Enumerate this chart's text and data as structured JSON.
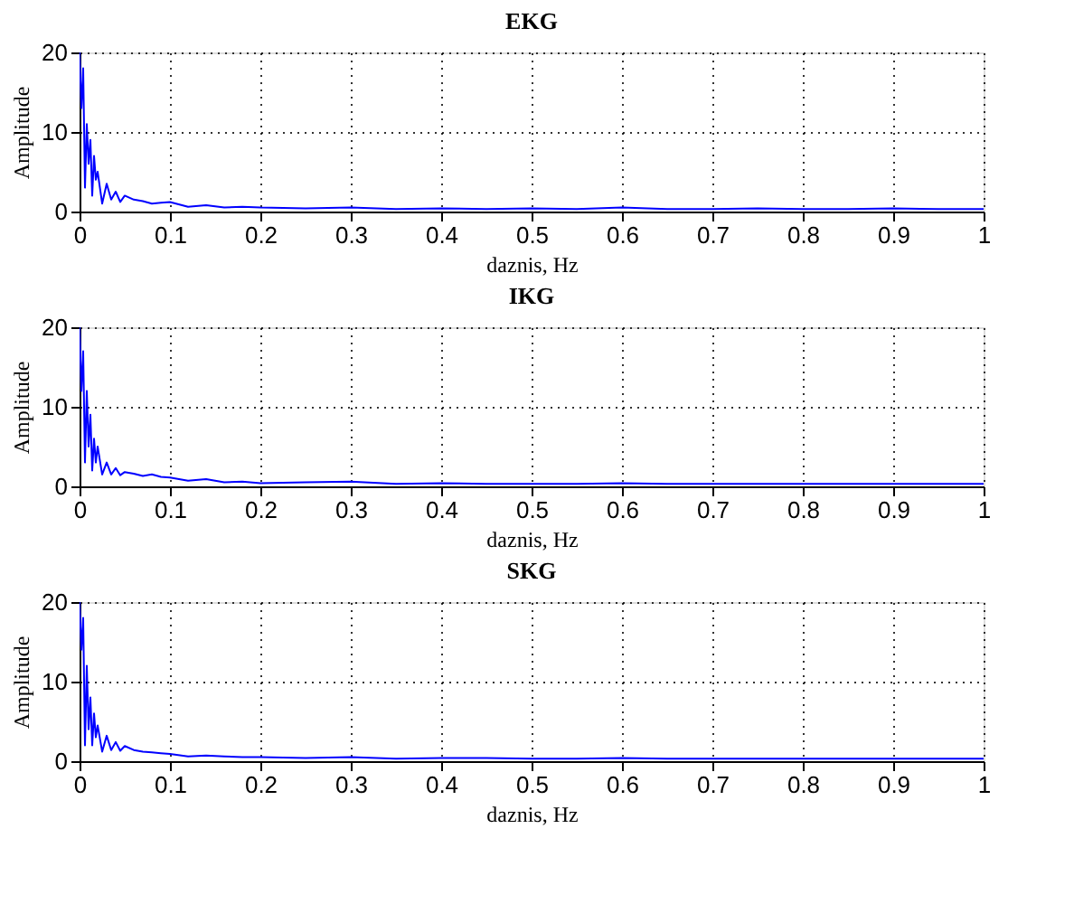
{
  "chart_data": [
    {
      "type": "line",
      "title": "EKG",
      "xlabel": "daznis, Hz",
      "ylabel": "Amplitude",
      "grid": true,
      "x": [
        0,
        0.002,
        0.004,
        0.006,
        0.008,
        0.01,
        0.012,
        0.014,
        0.016,
        0.018,
        0.02,
        0.025,
        0.03,
        0.035,
        0.04,
        0.045,
        0.05,
        0.06,
        0.07,
        0.08,
        0.09,
        0.1,
        0.12,
        0.14,
        0.16,
        0.18,
        0.2,
        0.25,
        0.3,
        0.35,
        0.4,
        0.45,
        0.5,
        0.55,
        0.6,
        0.65,
        0.7,
        0.75,
        0.8,
        0.85,
        0.9,
        0.95,
        1.0
      ],
      "series": [
        {
          "color": "#0000ff",
          "values": [
            20,
            13,
            18,
            3,
            11,
            6,
            9,
            2,
            7,
            4,
            5,
            1,
            3.5,
            1.5,
            2.5,
            1.2,
            2,
            1.5,
            1.3,
            1,
            1.1,
            1.2,
            0.6,
            0.8,
            0.5,
            0.6,
            0.5,
            0.4,
            0.5,
            0.3,
            0.4,
            0.3,
            0.4,
            0.3,
            0.5,
            0.3,
            0.3,
            0.4,
            0.3,
            0.3,
            0.4,
            0.3,
            0.3
          ]
        }
      ],
      "xlim": [
        0,
        1
      ],
      "ylim": [
        0,
        20
      ],
      "xticks": [
        0,
        0.1,
        0.2,
        0.3,
        0.4,
        0.5,
        0.6,
        0.7,
        0.8,
        0.9,
        1
      ],
      "yticks": [
        0,
        10,
        20
      ]
    },
    {
      "type": "line",
      "title": "IKG",
      "xlabel": "daznis, Hz",
      "ylabel": "Amplitude",
      "grid": true,
      "x": [
        0,
        0.002,
        0.004,
        0.006,
        0.008,
        0.01,
        0.012,
        0.014,
        0.016,
        0.018,
        0.02,
        0.025,
        0.03,
        0.035,
        0.04,
        0.045,
        0.05,
        0.06,
        0.07,
        0.08,
        0.09,
        0.1,
        0.12,
        0.14,
        0.16,
        0.18,
        0.2,
        0.25,
        0.3,
        0.35,
        0.4,
        0.45,
        0.5,
        0.55,
        0.6,
        0.65,
        0.7,
        0.75,
        0.8,
        0.85,
        0.9,
        0.95,
        1.0
      ],
      "series": [
        {
          "color": "#0000ff",
          "values": [
            20,
            12,
            17,
            3,
            12,
            5,
            9,
            2,
            6,
            3,
            5,
            1.5,
            3,
            1.5,
            2.3,
            1.4,
            1.8,
            1.6,
            1.3,
            1.5,
            1.2,
            1.1,
            0.7,
            0.9,
            0.5,
            0.6,
            0.4,
            0.5,
            0.6,
            0.3,
            0.4,
            0.3,
            0.3,
            0.3,
            0.4,
            0.3,
            0.3,
            0.3,
            0.3,
            0.3,
            0.3,
            0.3,
            0.3
          ]
        }
      ],
      "xlim": [
        0,
        1
      ],
      "ylim": [
        0,
        20
      ],
      "xticks": [
        0,
        0.1,
        0.2,
        0.3,
        0.4,
        0.5,
        0.6,
        0.7,
        0.8,
        0.9,
        1
      ],
      "yticks": [
        0,
        10,
        20
      ]
    },
    {
      "type": "line",
      "title": "SKG",
      "xlabel": "daznis, Hz",
      "ylabel": "Amplitude",
      "grid": true,
      "x": [
        0,
        0.002,
        0.004,
        0.006,
        0.008,
        0.01,
        0.012,
        0.014,
        0.016,
        0.018,
        0.02,
        0.025,
        0.03,
        0.035,
        0.04,
        0.045,
        0.05,
        0.06,
        0.07,
        0.08,
        0.09,
        0.1,
        0.12,
        0.14,
        0.16,
        0.18,
        0.2,
        0.25,
        0.3,
        0.35,
        0.4,
        0.45,
        0.5,
        0.55,
        0.6,
        0.65,
        0.7,
        0.75,
        0.8,
        0.85,
        0.9,
        0.95,
        1.0
      ],
      "series": [
        {
          "color": "#0000ff",
          "values": [
            20,
            14,
            18,
            2,
            12,
            4,
            8,
            2,
            6,
            3,
            4.5,
            1.2,
            3.2,
            1.4,
            2.4,
            1.3,
            1.9,
            1.4,
            1.2,
            1.1,
            1,
            0.9,
            0.6,
            0.7,
            0.6,
            0.5,
            0.5,
            0.4,
            0.5,
            0.3,
            0.4,
            0.4,
            0.3,
            0.3,
            0.4,
            0.3,
            0.3,
            0.3,
            0.3,
            0.3,
            0.3,
            0.3,
            0.3
          ]
        }
      ],
      "xlim": [
        0,
        1
      ],
      "ylim": [
        0,
        20
      ],
      "xticks": [
        0,
        0.1,
        0.2,
        0.3,
        0.4,
        0.5,
        0.6,
        0.7,
        0.8,
        0.9,
        1
      ],
      "yticks": [
        0,
        10,
        20
      ]
    }
  ]
}
